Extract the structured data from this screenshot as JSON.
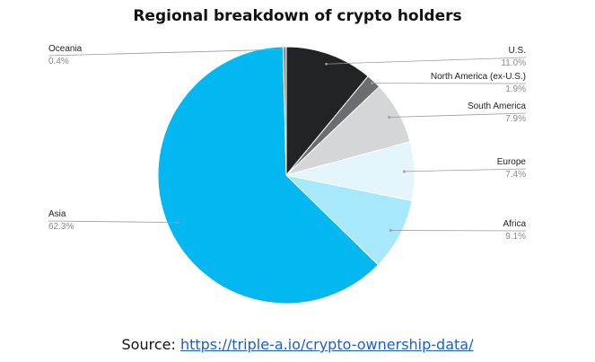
{
  "chart_data": {
    "type": "pie",
    "title": "Regional breakdown of crypto holders",
    "slices": [
      {
        "label": "U.S.",
        "value": 11.0,
        "pct_text": "11.0%",
        "color": "#222326"
      },
      {
        "label": "North America (ex-U.S.)",
        "value": 1.9,
        "pct_text": "1.9%",
        "color": "#6b6d73"
      },
      {
        "label": "South America",
        "value": 7.9,
        "pct_text": "7.9%",
        "color": "#d5d6d8"
      },
      {
        "label": "Europe",
        "value": 7.4,
        "pct_text": "7.4%",
        "color": "#e4f6fc"
      },
      {
        "label": "Africa",
        "value": 9.1,
        "pct_text": "9.1%",
        "color": "#a7e8fc"
      },
      {
        "label": "Asia",
        "value": 62.3,
        "pct_text": "62.3%",
        "color": "#03b8f0"
      },
      {
        "label": "Oceania",
        "value": 0.4,
        "pct_text": "0.4%",
        "color": "#8a8a8a"
      }
    ]
  },
  "source": {
    "prefix": "Source: ",
    "link_text": "https://triple-a.io/crypto-ownership-data/"
  }
}
